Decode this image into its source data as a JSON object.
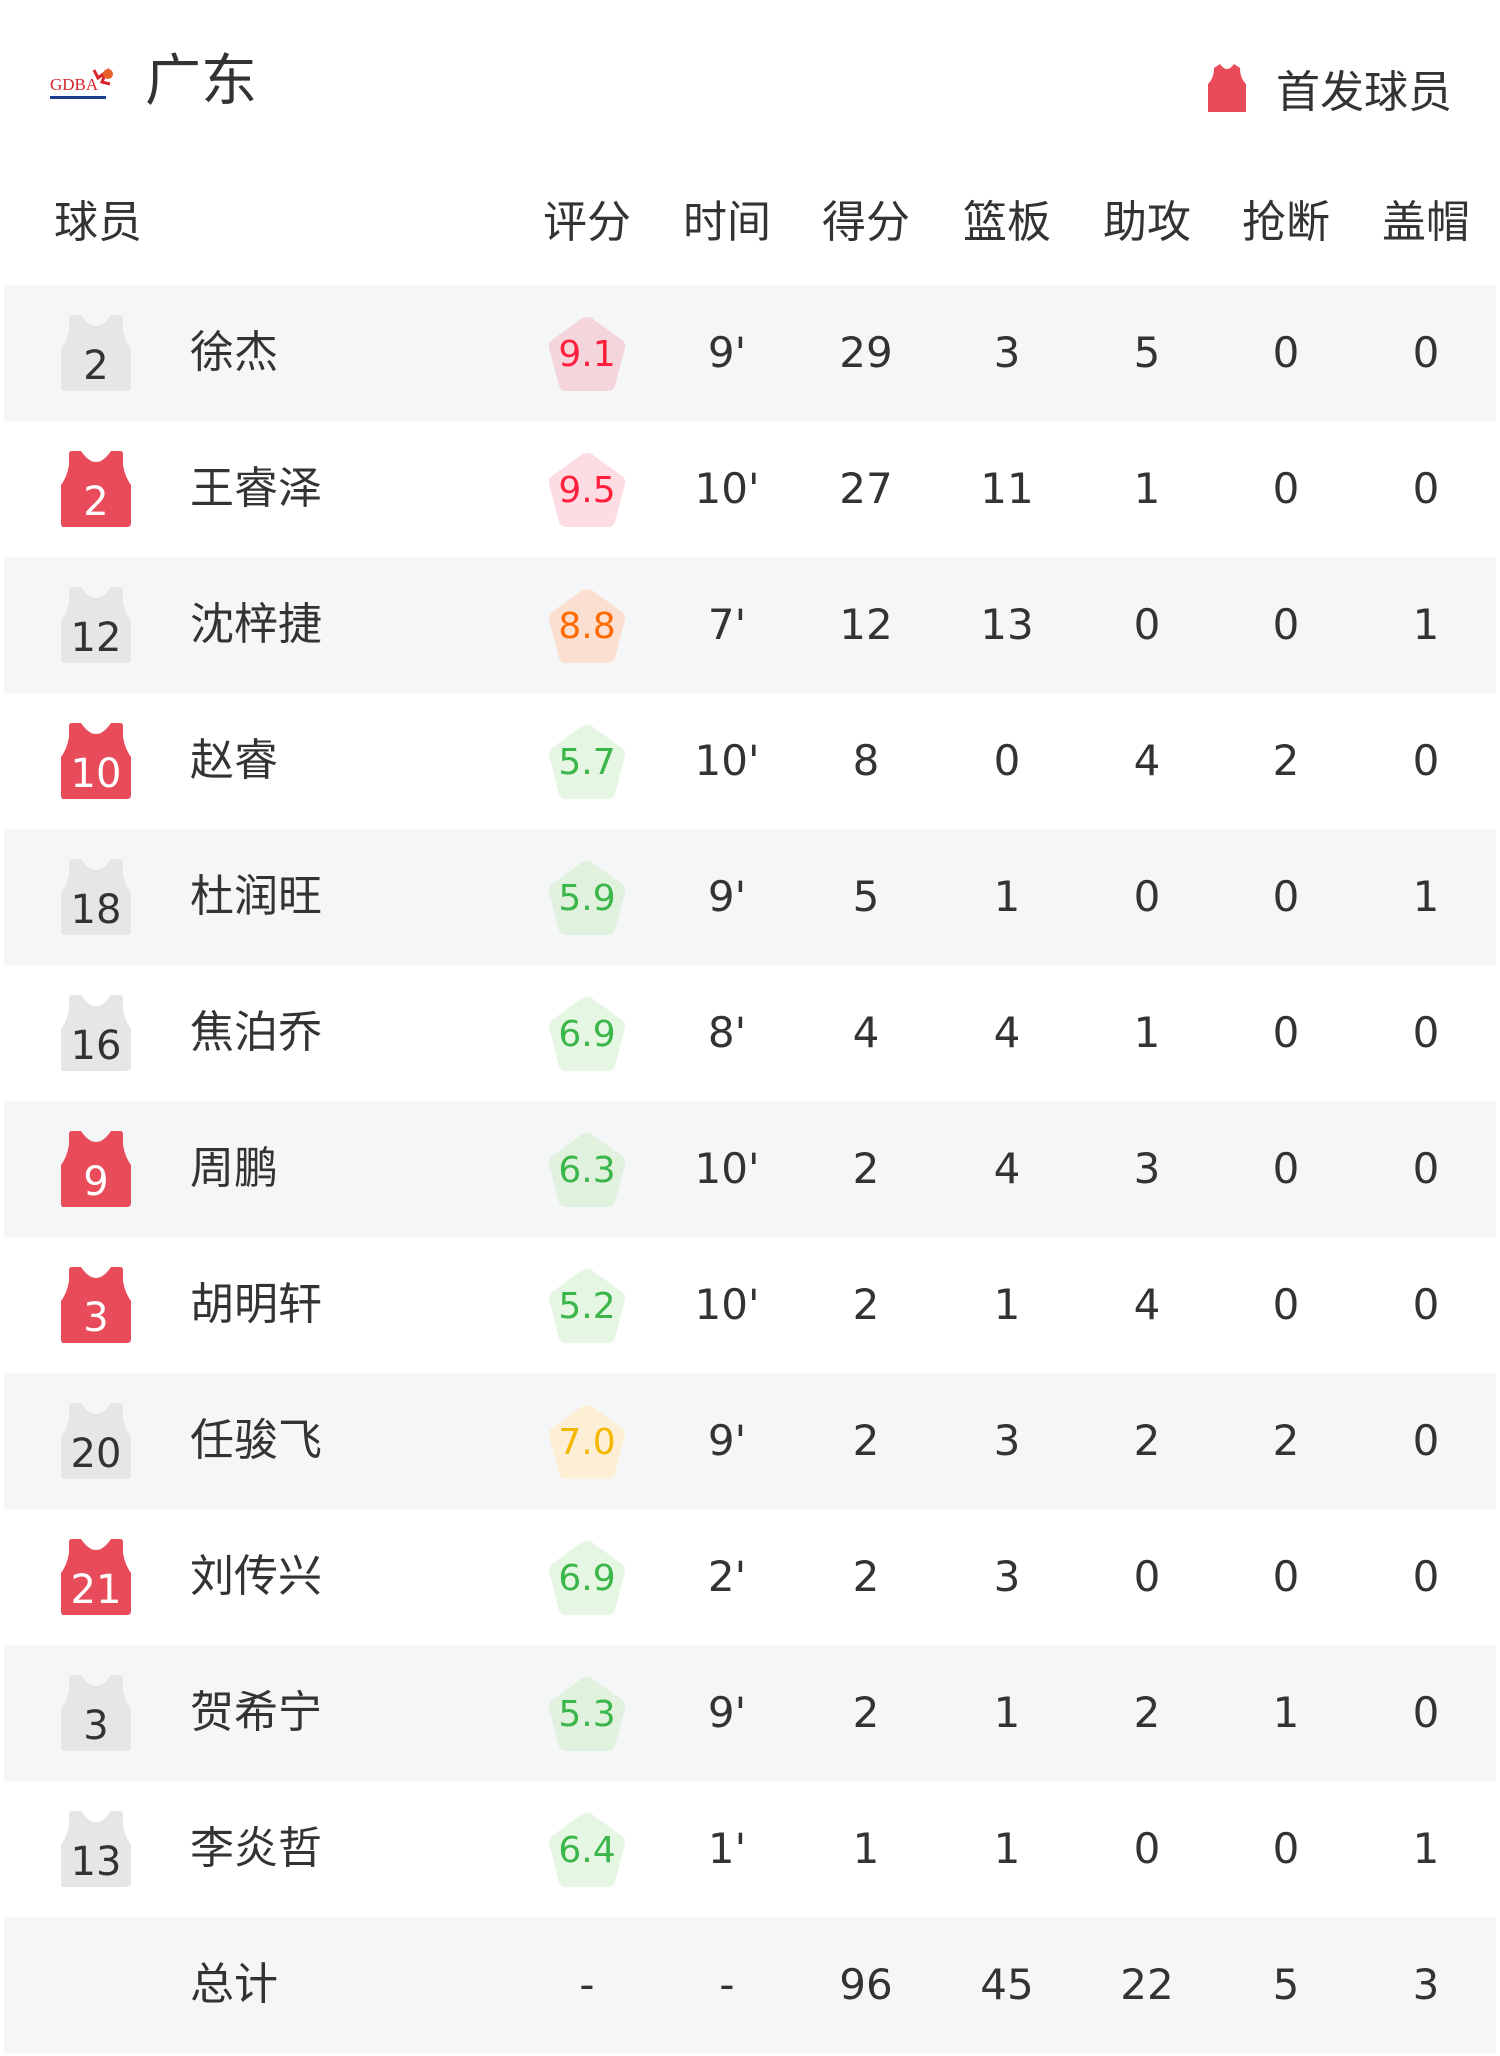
{
  "header": {
    "logo_text": "GDBA",
    "team_name": "广东",
    "starter_legend": "首发球员",
    "starter_color": "#e84c5a",
    "bench_color": "#e6e6e6"
  },
  "columns": {
    "player": "球员",
    "rating": "评分",
    "time": "时间",
    "points": "得分",
    "rebounds": "篮板",
    "assists": "助攻",
    "steals": "抢断",
    "blocks": "盖帽"
  },
  "players": [
    {
      "number": "2",
      "starter": false,
      "name": "徐杰",
      "rating": "9.1",
      "rating_color": "#ff1f3d",
      "rating_bg": "#f5d5dc",
      "time": "9'",
      "points": "29",
      "rebounds": "3",
      "assists": "5",
      "steals": "0",
      "blocks": "0"
    },
    {
      "number": "2",
      "starter": true,
      "name": "王睿泽",
      "rating": "9.5",
      "rating_color": "#ff1f3d",
      "rating_bg": "#fddde3",
      "time": "10'",
      "points": "27",
      "rebounds": "11",
      "assists": "1",
      "steals": "0",
      "blocks": "0"
    },
    {
      "number": "12",
      "starter": false,
      "name": "沈梓捷",
      "rating": "8.8",
      "rating_color": "#ff6a00",
      "rating_bg": "#fbe0d2",
      "time": "7'",
      "points": "12",
      "rebounds": "13",
      "assists": "0",
      "steals": "0",
      "blocks": "1"
    },
    {
      "number": "10",
      "starter": true,
      "name": "赵睿",
      "rating": "5.7",
      "rating_color": "#3cb54a",
      "rating_bg": "#e5f6e3",
      "time": "10'",
      "points": "8",
      "rebounds": "0",
      "assists": "4",
      "steals": "2",
      "blocks": "0"
    },
    {
      "number": "18",
      "starter": false,
      "name": "杜润旺",
      "rating": "5.9",
      "rating_color": "#3cb54a",
      "rating_bg": "#e0f1de",
      "time": "9'",
      "points": "5",
      "rebounds": "1",
      "assists": "0",
      "steals": "0",
      "blocks": "1"
    },
    {
      "number": "16",
      "starter": false,
      "name": "焦泊乔",
      "rating": "6.9",
      "rating_color": "#3cb54a",
      "rating_bg": "#e5f6e3",
      "time": "8'",
      "points": "4",
      "rebounds": "4",
      "assists": "1",
      "steals": "0",
      "blocks": "0"
    },
    {
      "number": "9",
      "starter": true,
      "name": "周鹏",
      "rating": "6.3",
      "rating_color": "#3cb54a",
      "rating_bg": "#e0f1de",
      "time": "10'",
      "points": "2",
      "rebounds": "4",
      "assists": "3",
      "steals": "0",
      "blocks": "0"
    },
    {
      "number": "3",
      "starter": true,
      "name": "胡明轩",
      "rating": "5.2",
      "rating_color": "#3cb54a",
      "rating_bg": "#e5f6e3",
      "time": "10'",
      "points": "2",
      "rebounds": "1",
      "assists": "4",
      "steals": "0",
      "blocks": "0"
    },
    {
      "number": "20",
      "starter": false,
      "name": "任骏飞",
      "rating": "7.0",
      "rating_color": "#f5b800",
      "rating_bg": "#fcefd6",
      "time": "9'",
      "points": "2",
      "rebounds": "3",
      "assists": "2",
      "steals": "2",
      "blocks": "0"
    },
    {
      "number": "21",
      "starter": true,
      "name": "刘传兴",
      "rating": "6.9",
      "rating_color": "#3cb54a",
      "rating_bg": "#e5f6e3",
      "time": "2'",
      "points": "2",
      "rebounds": "3",
      "assists": "0",
      "steals": "0",
      "blocks": "0"
    },
    {
      "number": "3",
      "starter": false,
      "name": "贺希宁",
      "rating": "5.3",
      "rating_color": "#3cb54a",
      "rating_bg": "#e0f1de",
      "time": "9'",
      "points": "2",
      "rebounds": "1",
      "assists": "2",
      "steals": "1",
      "blocks": "0"
    },
    {
      "number": "13",
      "starter": false,
      "name": "李炎哲",
      "rating": "6.4",
      "rating_color": "#3cb54a",
      "rating_bg": "#e5f6e3",
      "time": "1'",
      "points": "1",
      "rebounds": "1",
      "assists": "0",
      "steals": "0",
      "blocks": "1"
    }
  ],
  "totals": {
    "label": "总计",
    "rating": "-",
    "time": "-",
    "points": "96",
    "rebounds": "45",
    "assists": "22",
    "steals": "5",
    "blocks": "3"
  }
}
